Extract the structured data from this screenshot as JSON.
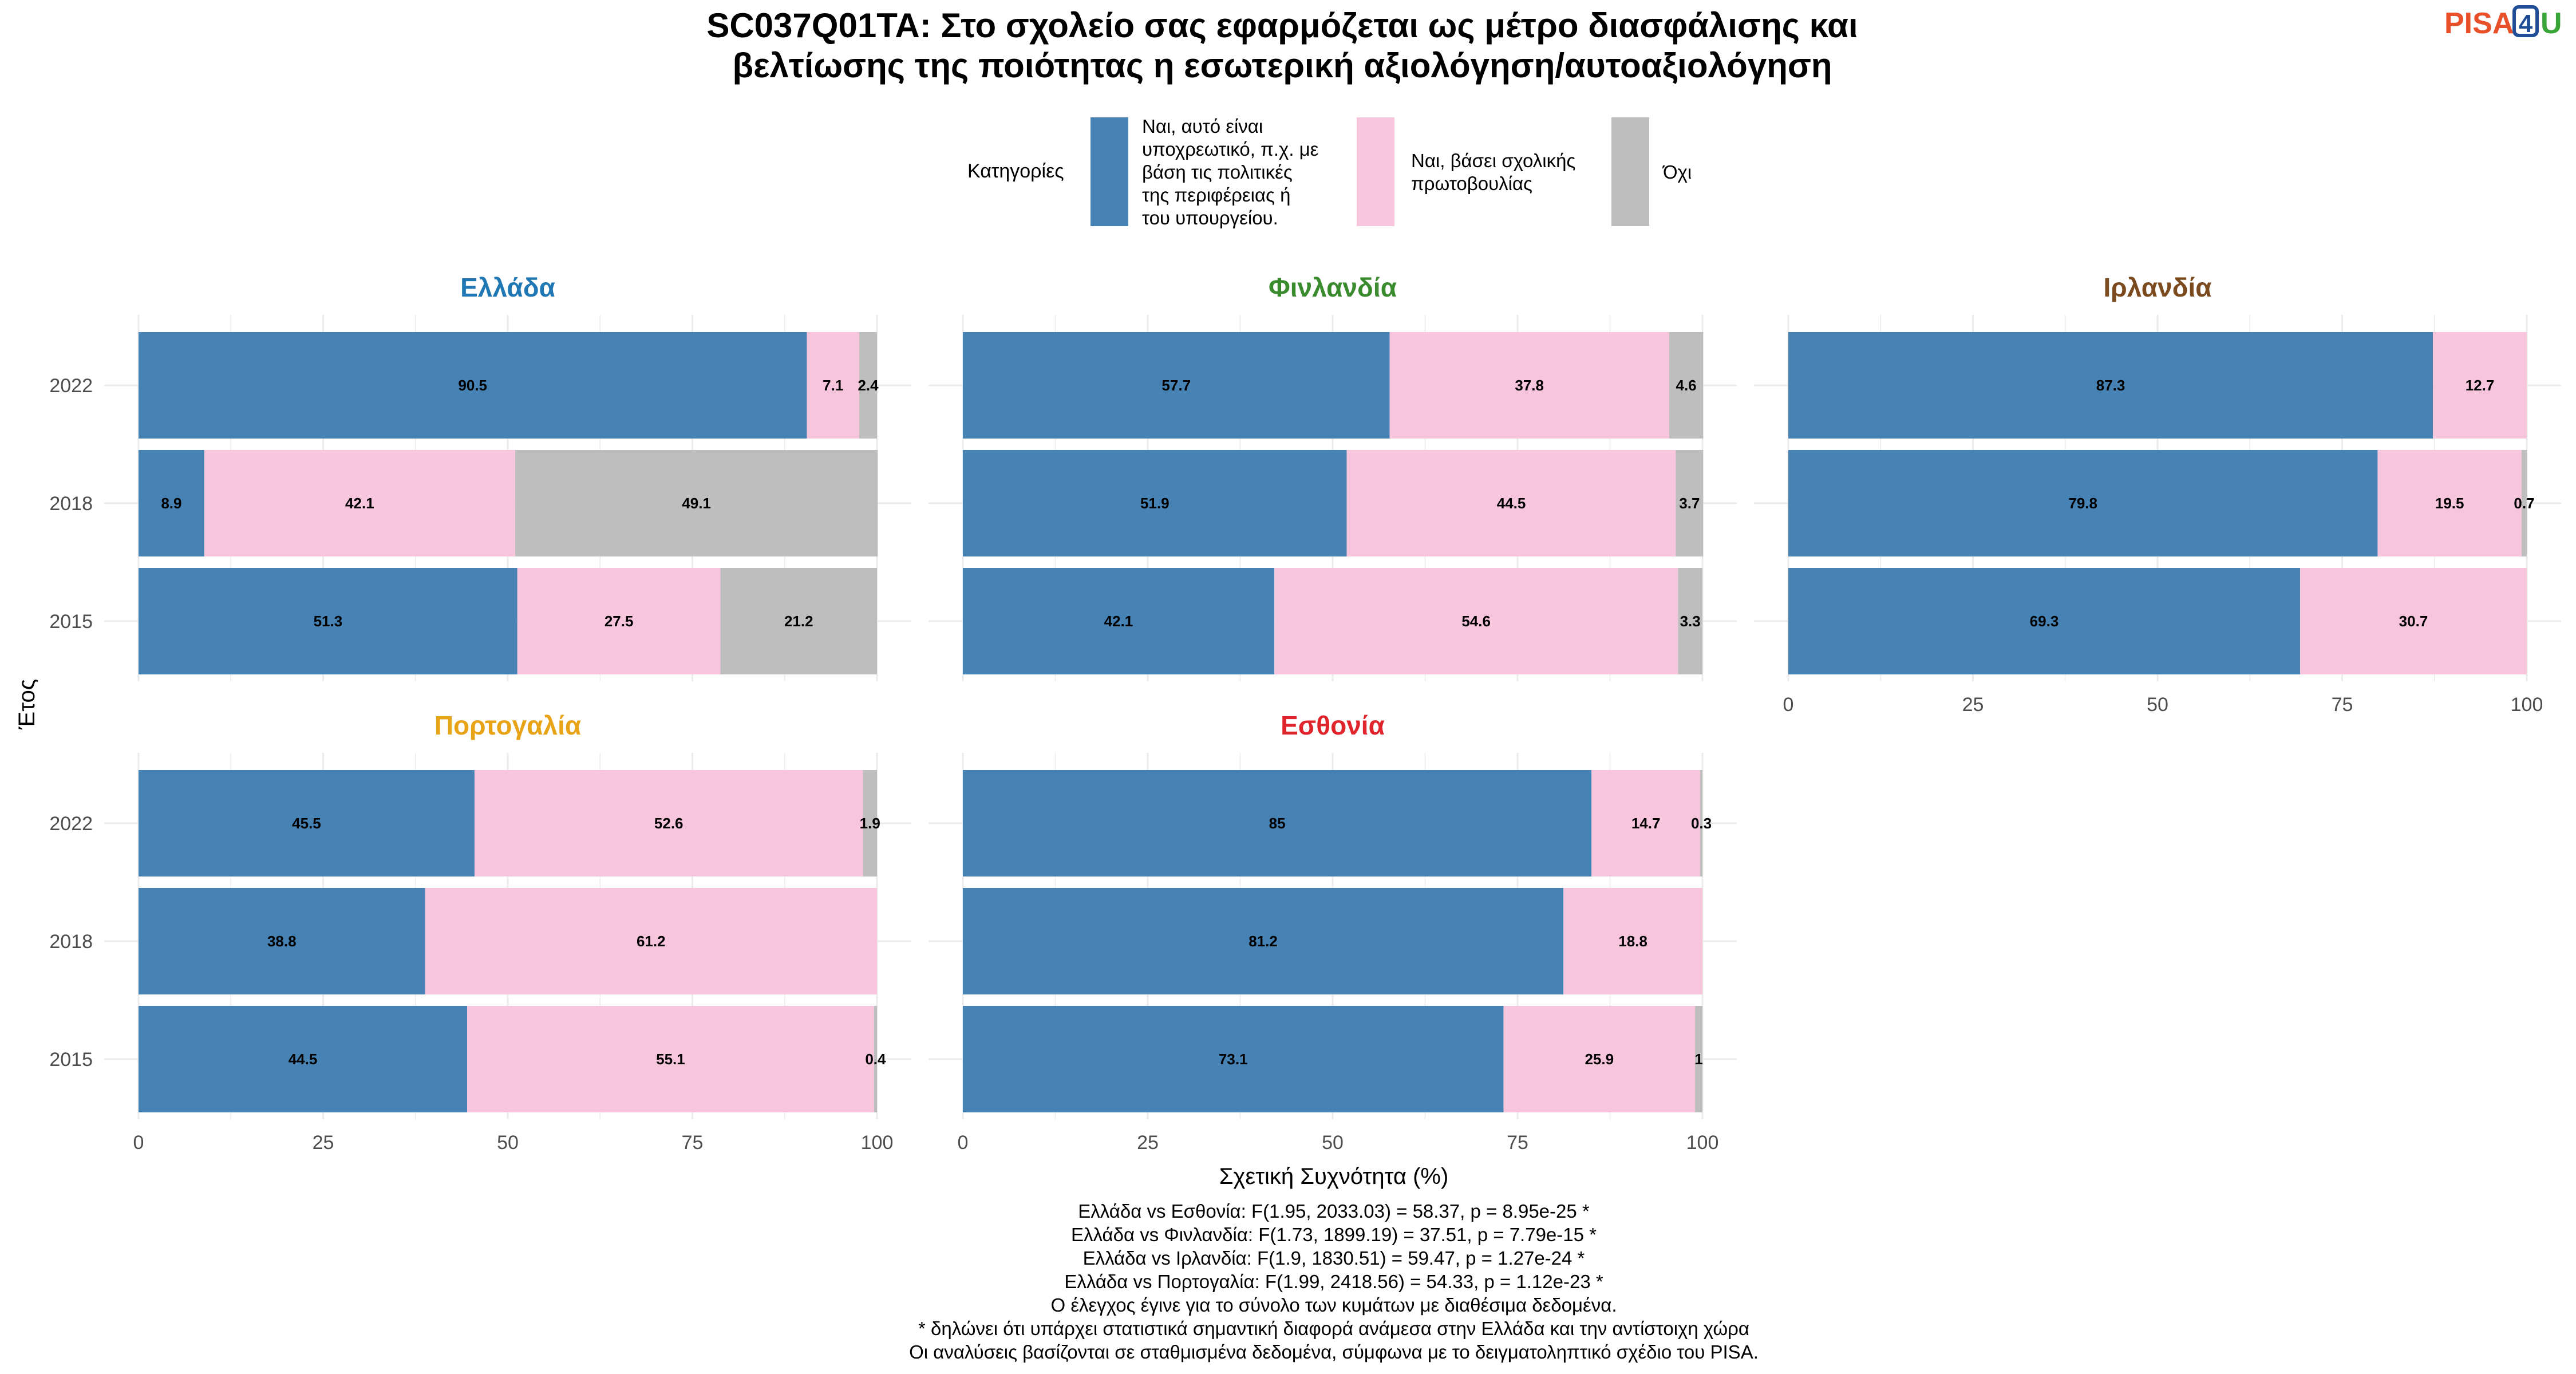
{
  "title_lines": [
    "SC037Q01TA: Στο σχολείο σας εφαρμόζεται ως μέτρο διασφάλισης και",
    "βελτίωσης της ποιότητας η εσωτερική αξιολόγηση/αυτοαξιολόγηση"
  ],
  "logo": {
    "text_left": "PISA",
    "text_box": "4",
    "text_right": "U",
    "color_left": "#e8502a",
    "color_box": "#1f4e96",
    "color_right": "#3aa63a"
  },
  "legend": {
    "title": "Κατηγορίες",
    "items": [
      {
        "lines": [
          "Ναι, αυτό είναι",
          "υποχρεωτικό, π.χ. με",
          "βάση τις πολιτικές",
          "της περιφέρειας ή",
          "του υπουργείου."
        ],
        "color": "#4682b4"
      },
      {
        "lines": [
          "Ναι, βάσει σχολικής",
          "πρωτοβουλίας"
        ],
        "color": "#f7c6dc"
      },
      {
        "lines": [
          "Όχι"
        ],
        "color": "#bebebe"
      }
    ],
    "placement": "top"
  },
  "axes": {
    "y_title": "Έτος",
    "x_title": "Σχετική Συχνότητα (%)",
    "x_ticks": [
      "0",
      "25",
      "50",
      "75",
      "100"
    ]
  },
  "chart_data": {
    "type": "bar",
    "orientation": "horizontal",
    "stacked": true,
    "categories": [
      "2022",
      "2018",
      "2015"
    ],
    "xlim": [
      0,
      100
    ],
    "grid": true,
    "series_colors": [
      "#4682b4",
      "#f7c6dc",
      "#bebebe"
    ],
    "panels": [
      {
        "title": "Ελλάδα",
        "title_color": "#1f77b4",
        "rows": [
          {
            "year": "2022",
            "values": [
              90.5,
              7.1,
              2.4
            ],
            "labels": [
              "90.5",
              "7.1",
              "2.4"
            ]
          },
          {
            "year": "2018",
            "values": [
              8.9,
              42.1,
              49.1
            ],
            "labels": [
              "8.9",
              "42.1",
              "49.1"
            ]
          },
          {
            "year": "2015",
            "values": [
              51.3,
              27.5,
              21.2
            ],
            "labels": [
              "51.3",
              "27.5",
              "21.2"
            ]
          }
        ]
      },
      {
        "title": "Φινλανδία",
        "title_color": "#3a8a2e",
        "rows": [
          {
            "year": "2022",
            "values": [
              57.7,
              37.8,
              4.6
            ],
            "labels": [
              "57.7",
              "37.8",
              "4.6"
            ]
          },
          {
            "year": "2018",
            "values": [
              51.9,
              44.5,
              3.7
            ],
            "labels": [
              "51.9",
              "44.5",
              "3.7"
            ]
          },
          {
            "year": "2015",
            "values": [
              42.1,
              54.6,
              3.3
            ],
            "labels": [
              "42.1",
              "54.6",
              "3.3"
            ]
          }
        ]
      },
      {
        "title": "Ιρλανδία",
        "title_color": "#7b4a1e",
        "rows": [
          {
            "year": "2022",
            "values": [
              87.3,
              12.7,
              0
            ],
            "labels": [
              "87.3",
              "12.7",
              ""
            ]
          },
          {
            "year": "2018",
            "values": [
              79.8,
              19.5,
              0.7
            ],
            "labels": [
              "79.8",
              "19.5",
              "0.7"
            ]
          },
          {
            "year": "2015",
            "values": [
              69.3,
              30.7,
              0
            ],
            "labels": [
              "69.3",
              "30.7",
              ""
            ]
          }
        ]
      },
      {
        "title": "Πορτογαλία",
        "title_color": "#e8a317",
        "rows": [
          {
            "year": "2022",
            "values": [
              45.5,
              52.6,
              1.9
            ],
            "labels": [
              "45.5",
              "52.6",
              "1.9"
            ]
          },
          {
            "year": "2018",
            "values": [
              38.8,
              61.2,
              0
            ],
            "labels": [
              "38.8",
              "61.2",
              ""
            ]
          },
          {
            "year": "2015",
            "values": [
              44.5,
              55.1,
              0.4
            ],
            "labels": [
              "44.5",
              "55.1",
              "0.4"
            ]
          }
        ]
      },
      {
        "title": "Εσθονία",
        "title_color": "#e0242b",
        "rows": [
          {
            "year": "2022",
            "values": [
              85,
              14.7,
              0.3
            ],
            "labels": [
              "85",
              "14.7",
              "0.3"
            ]
          },
          {
            "year": "2018",
            "values": [
              81.2,
              18.8,
              0
            ],
            "labels": [
              "81.2",
              "18.8",
              ""
            ]
          },
          {
            "year": "2015",
            "values": [
              73.1,
              25.9,
              1
            ],
            "labels": [
              "73.1",
              "25.9",
              "1"
            ]
          }
        ]
      }
    ]
  },
  "footnotes": [
    "Ελλάδα vs Εσθονία: F(1.95, 2033.03) = 58.37, p = 8.95e-25 *",
    "Ελλάδα vs Φινλανδία: F(1.73, 1899.19) = 37.51, p = 7.79e-15 *",
    "Ελλάδα vs Ιρλανδία: F(1.9, 1830.51) = 59.47, p = 1.27e-24 *",
    "Ελλάδα vs Πορτογαλία: F(1.99, 2418.56) = 54.33, p = 1.12e-23 *",
    "Ο έλεγχος έγινε για το σύνολο των κυμάτων με διαθέσιμα δεδομένα.",
    "* δηλώνει ότι υπάρχει στατιστικά σημαντική διαφορά ανάμεσα στην Ελλάδα και την αντίστοιχη χώρα",
    "Οι αναλύσεις βασίζονται σε σταθμισμένα δεδομένα, σύμφωνα με το δειγματοληπτικό σχέδιο του PISA."
  ]
}
